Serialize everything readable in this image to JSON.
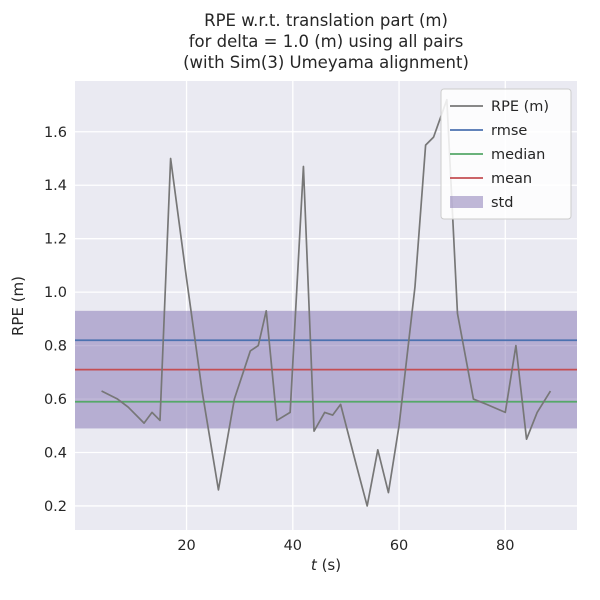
{
  "chart_data": {
    "type": "line",
    "title_lines": [
      "RPE w.r.t. translation part (m)",
      "for delta = 1.0 (m) using all pairs",
      "(with Sim(3) Umeyama alignment)"
    ],
    "xlabel_var": "t",
    "xlabel_rest": " (s)",
    "ylabel": "RPE (m)",
    "xlim": [
      -1,
      93.5
    ],
    "ylim": [
      0.11,
      1.79
    ],
    "xticks": [
      20,
      40,
      60,
      80
    ],
    "yticks": [
      0.2,
      0.4,
      0.6,
      0.8,
      1.0,
      1.2,
      1.4,
      1.6
    ],
    "grid": true,
    "legend_position": "upper right",
    "panel_bg": "#eaeaf2",
    "grid_color": "#ffffff",
    "text_color": "#262626",
    "series": {
      "name": "RPE (m)",
      "color": "#777777",
      "x": [
        4,
        7,
        9,
        12,
        13.5,
        15,
        17,
        20,
        23,
        26,
        29,
        32,
        33.5,
        35,
        37,
        39.5,
        42,
        44,
        46,
        47.5,
        49,
        52,
        54,
        56,
        58,
        60,
        63,
        65,
        66.5,
        69,
        71,
        74,
        76.5,
        80,
        82,
        84,
        86,
        88.5
      ],
      "y": [
        0.63,
        0.6,
        0.57,
        0.51,
        0.55,
        0.52,
        1.5,
        1.05,
        0.62,
        0.26,
        0.6,
        0.78,
        0.8,
        0.93,
        0.52,
        0.55,
        1.47,
        0.48,
        0.55,
        0.54,
        0.58,
        0.35,
        0.2,
        0.41,
        0.25,
        0.5,
        1.02,
        1.55,
        1.58,
        1.72,
        0.92,
        0.6,
        0.58,
        0.55,
        0.8,
        0.45,
        0.55,
        0.63
      ]
    },
    "stats": [
      {
        "name": "rmse",
        "value": 0.82,
        "color": "#4c72b0"
      },
      {
        "name": "median",
        "value": 0.59,
        "color": "#55a868"
      },
      {
        "name": "mean",
        "value": 0.71,
        "color": "#c44e52"
      }
    ],
    "std_band": {
      "name": "std",
      "low": 0.49,
      "high": 0.93,
      "color": "#8172b2",
      "alpha": 0.5
    }
  }
}
